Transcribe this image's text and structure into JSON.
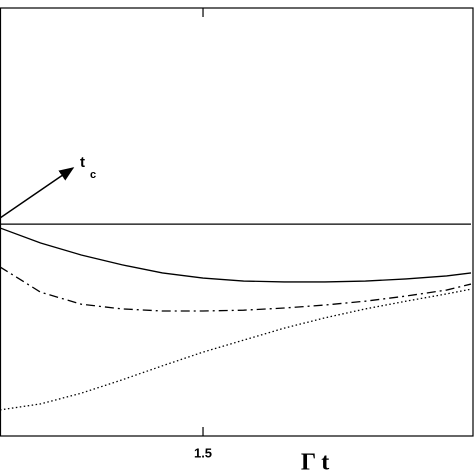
{
  "chart_data": {
    "type": "line",
    "x": [
      1.0,
      1.1,
      1.2,
      1.3,
      1.4,
      1.5,
      1.6,
      1.7,
      1.8,
      1.9,
      2.0,
      2.1,
      2.16
    ],
    "xlim": [
      1.0,
      2.16
    ],
    "ylim": [
      0,
      1
    ],
    "xticks": [
      1.5
    ],
    "xlabel": "Γ t",
    "annotation": {
      "text": "t",
      "subscript": "c"
    },
    "series": [
      {
        "color": "#000000",
        "style": "solid",
        "values": [
          0.495,
          0.495,
          0.495,
          0.495,
          0.495,
          0.495,
          0.495,
          0.495,
          0.495,
          0.495,
          0.495,
          0.495,
          0.495
        ]
      },
      {
        "color": "#000000",
        "style": "solid",
        "values": [
          0.486,
          0.451,
          0.423,
          0.4,
          0.381,
          0.369,
          0.362,
          0.36,
          0.36,
          0.362,
          0.367,
          0.374,
          0.381
        ]
      },
      {
        "color": "#000000",
        "style": "dashdot",
        "values": [
          0.395,
          0.336,
          0.308,
          0.297,
          0.292,
          0.292,
          0.294,
          0.299,
          0.306,
          0.315,
          0.327,
          0.341,
          0.355
        ]
      },
      {
        "color": "#000000",
        "style": "dotted",
        "values": [
          0.061,
          0.075,
          0.1,
          0.131,
          0.164,
          0.196,
          0.224,
          0.252,
          0.276,
          0.297,
          0.315,
          0.332,
          0.343
        ]
      }
    ]
  }
}
